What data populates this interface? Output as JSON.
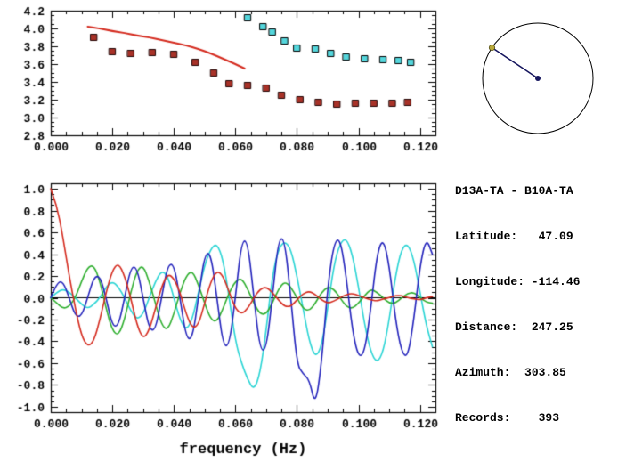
{
  "station_info": {
    "title": "D13A-TA - B10A-TA",
    "lines": [
      "Latitude:   47.09",
      "Longitude: -114.46",
      "Distance:  247.25",
      "Azimuth:  303.85",
      "Records:    393"
    ]
  },
  "compass": {
    "azimuth_deg": 303.85,
    "circle_color": "#000000",
    "line_color": "#16165e",
    "end_marker_color": "#b9a93a",
    "center_marker_color": "#16165e"
  },
  "chart_data": [
    {
      "id": "dispersion",
      "type": "scatter",
      "title": "",
      "xlabel": "",
      "ylabel": "",
      "xlim": [
        0,
        0.125
      ],
      "ylim": [
        2.8,
        4.2
      ],
      "xminor": 0.005,
      "yminor": 0.05,
      "xticks": {
        "values": [
          0,
          0.02,
          0.04,
          0.06,
          0.08,
          0.1,
          0.12
        ],
        "labels": [
          "0.000",
          "0.020",
          "0.040",
          "0.060",
          "0.080",
          "0.100",
          "0.120"
        ]
      },
      "yticks": {
        "values": [
          2.8,
          3.0,
          3.2,
          3.4,
          3.6,
          3.8,
          4.0,
          4.2
        ],
        "labels": [
          "2.8",
          "3.0",
          "3.2",
          "3.4",
          "3.6",
          "3.8",
          "4.0",
          "4.2"
        ]
      },
      "series": [
        {
          "name": "red-dispersion-line",
          "type": "line",
          "color": "#d42a1e",
          "width": 2,
          "x": [
            0.012,
            0.016,
            0.02,
            0.024,
            0.028,
            0.032,
            0.036,
            0.04,
            0.044,
            0.048,
            0.052,
            0.056,
            0.06,
            0.063
          ],
          "y": [
            4.02,
            4.0,
            3.97,
            3.95,
            3.92,
            3.9,
            3.87,
            3.84,
            3.81,
            3.77,
            3.72,
            3.66,
            3.6,
            3.55
          ]
        },
        {
          "name": "dark-red-squares",
          "type": "scatter",
          "marker": "square",
          "color": "#a83228",
          "edge": "#220505",
          "x": [
            0.014,
            0.02,
            0.026,
            0.033,
            0.04,
            0.047,
            0.053,
            0.058,
            0.064,
            0.07,
            0.075,
            0.081,
            0.087,
            0.093,
            0.099,
            0.105,
            0.111,
            0.116
          ],
          "y": [
            3.9,
            3.74,
            3.72,
            3.73,
            3.71,
            3.62,
            3.5,
            3.38,
            3.36,
            3.33,
            3.25,
            3.2,
            3.17,
            3.15,
            3.16,
            3.16,
            3.16,
            3.17
          ]
        },
        {
          "name": "cyan-squares",
          "type": "scatter",
          "marker": "square",
          "color": "#54d6dc",
          "edge": "#000000",
          "x": [
            0.064,
            0.069,
            0.072,
            0.076,
            0.08,
            0.086,
            0.091,
            0.096,
            0.102,
            0.108,
            0.113,
            0.117
          ],
          "y": [
            4.12,
            4.02,
            3.96,
            3.86,
            3.78,
            3.77,
            3.72,
            3.68,
            3.66,
            3.65,
            3.64,
            3.62
          ]
        }
      ]
    },
    {
      "id": "waveforms",
      "type": "line",
      "xlabel": "frequency (Hz)",
      "ylabel": "",
      "xlim": [
        0,
        0.125
      ],
      "ylim": [
        -1.05,
        1.05
      ],
      "xminor": 0.005,
      "yminor": 0.05,
      "zero_line": true,
      "x0": 0,
      "dx": 0.002,
      "xticks": {
        "values": [
          0,
          0.02,
          0.04,
          0.06,
          0.08,
          0.1,
          0.12
        ],
        "labels": [
          "0.000",
          "0.020",
          "0.040",
          "0.060",
          "0.080",
          "0.100",
          "0.120"
        ]
      },
      "yticks": {
        "values": [
          1.0,
          0.8,
          0.6,
          0.4,
          0.2,
          0.0,
          -0.2,
          -0.4,
          -0.6,
          -0.8,
          -1.0
        ],
        "labels": [
          "1.0",
          "0.8",
          "0.6",
          "0.4",
          "0.2",
          "0.0",
          "-0.2",
          "-0.4",
          "-0.6",
          "-0.8",
          "-1.0"
        ]
      },
      "series": [
        {
          "name": "cyan-waveform",
          "type": "line",
          "color": "#2ad4d4",
          "width": 1.6,
          "y": [
            0,
            0.05,
            0.08,
            0.05,
            0,
            -0.06,
            -0.1,
            -0.06,
            0,
            0.1,
            0.15,
            0.1,
            0,
            -0.12,
            -0.2,
            -0.15,
            0,
            0.15,
            0.25,
            0.2,
            0,
            -0.2,
            -0.3,
            -0.2,
            0.05,
            0.3,
            0.45,
            0.5,
            0.35,
            0,
            -0.4,
            -0.6,
            -0.75,
            -0.85,
            -0.7,
            -0.3,
            0.2,
            0.45,
            0.52,
            0.45,
            0.2,
            -0.1,
            -0.4,
            -0.55,
            -0.45,
            -0.1,
            0.3,
            0.5,
            0.55,
            0.4,
            0.1,
            -0.25,
            -0.5,
            -0.6,
            -0.5,
            -0.2,
            0.2,
            0.45,
            0.5,
            0.35,
            0.05,
            -0.25,
            -0.45
          ]
        },
        {
          "name": "green-waveform",
          "type": "line",
          "color": "#2eae2e",
          "width": 1.6,
          "y": [
            0,
            -0.05,
            -0.1,
            -0.08,
            0,
            0.15,
            0.28,
            0.3,
            0.15,
            -0.1,
            -0.3,
            -0.35,
            -0.2,
            0.05,
            0.25,
            0.3,
            0.15,
            -0.05,
            -0.25,
            -0.3,
            -0.15,
            0.05,
            0.2,
            0.25,
            0.12,
            -0.05,
            -0.2,
            -0.22,
            -0.1,
            0.05,
            0.15,
            0.18,
            0.08,
            -0.05,
            -0.15,
            -0.15,
            -0.05,
            0.08,
            0.15,
            0.1,
            0,
            -0.1,
            -0.12,
            -0.05,
            0.05,
            0.1,
            0.08,
            0,
            -0.08,
            -0.1,
            -0.05,
            0.02,
            0.08,
            0.05,
            0,
            -0.05,
            -0.05,
            0,
            0.04,
            0.05,
            0,
            -0.04,
            -0.05
          ]
        },
        {
          "name": "blue-waveform",
          "type": "line",
          "color": "#2222bb",
          "width": 1.6,
          "y": [
            0,
            0.14,
            0.15,
            0,
            -0.17,
            -0.17,
            0,
            0.19,
            0.2,
            0,
            -0.26,
            -0.26,
            0,
            0.28,
            0.28,
            0,
            -0.29,
            -0.3,
            0,
            0.3,
            0.31,
            0,
            -0.37,
            -0.38,
            0,
            0.4,
            0.41,
            0,
            -0.44,
            -0.44,
            0,
            0.52,
            0.52,
            0,
            -0.48,
            -0.48,
            0,
            0.54,
            0.54,
            0,
            -0.61,
            -0.7,
            -0.75,
            -1.0,
            -0.6,
            0.1,
            0.5,
            0.55,
            0.2,
            -0.3,
            -0.55,
            -0.5,
            -0.1,
            0.4,
            0.55,
            0.3,
            -0.2,
            -0.5,
            -0.55,
            -0.2,
            0.3,
            0.55,
            0.4
          ]
        },
        {
          "name": "red-waveform",
          "type": "line",
          "color": "#d42a1e",
          "width": 1.6,
          "y": [
            1,
            0.85,
            0.55,
            0.2,
            -0.1,
            -0.35,
            -0.45,
            -0.4,
            -0.2,
            0.05,
            0.25,
            0.32,
            0.2,
            0,
            -0.25,
            -0.38,
            -0.3,
            -0.1,
            0.1,
            0.22,
            0.18,
            0.05,
            -0.15,
            -0.28,
            -0.25,
            -0.05,
            0.15,
            0.25,
            0.2,
            0.05,
            -0.1,
            -0.15,
            -0.1,
            0,
            0.08,
            0.1,
            0.05,
            -0.02,
            -0.08,
            -0.08,
            -0.02,
            0.04,
            0.06,
            0.03,
            -0.02,
            -0.05,
            -0.03,
            0,
            0.03,
            0.04,
            0.02,
            0,
            -0.02,
            -0.03,
            -0.01,
            0,
            0.02,
            0.02,
            0,
            -0.01,
            -0.02,
            0,
            0.01
          ]
        }
      ]
    }
  ]
}
